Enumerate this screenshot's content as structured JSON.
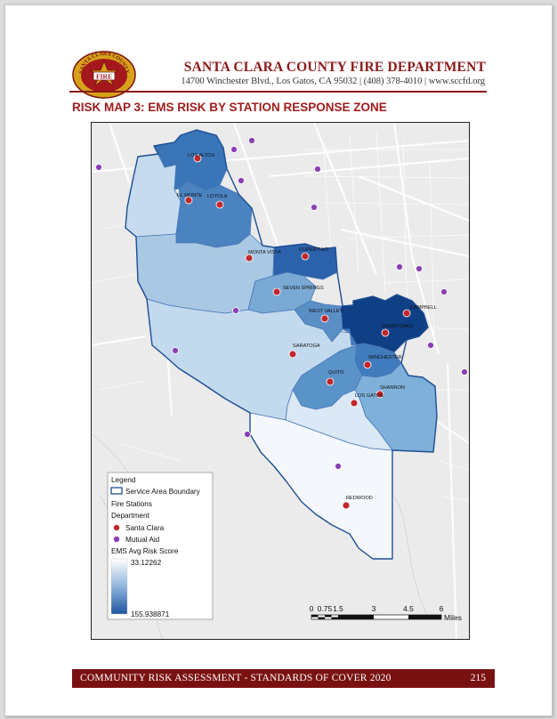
{
  "header": {
    "department": "SANTA CLARA COUNTY FIRE DEPARTMENT",
    "address": "14700 Winchester Blvd., Los Gatos, CA 95032 | (408) 378-4010 | www.sccfd.org",
    "logo_text_top": "SANTA CLARA COUNTY",
    "logo_text_center": "FIRE"
  },
  "map": {
    "title": "RISK MAP 3: EMS RISK BY STATION RESPONSE ZONE",
    "stations": [
      "LOS ALTOS",
      "EL MONTE",
      "LOYOLA",
      "MONTA VISTA",
      "CUPERTINO",
      "SEVEN SPRINGS",
      "WEST VALLEY",
      "CAMPBELL",
      "SUNNYOAKS",
      "SARATOGA",
      "WINCHESTER",
      "QUITO",
      "SHANNON",
      "LOS GATOS",
      "REDWOOD"
    ],
    "legend": {
      "title": "Legend",
      "boundary": "Service Area Boundary",
      "fire_stations": "Fire Stations",
      "department": "Department",
      "santa_clara": "Santa Clara",
      "mutual_aid": "Mutual Aid",
      "risk_title": "EMS Avg Risk Score",
      "risk_max": "33.12262",
      "risk_min": "155.938871"
    },
    "scale": {
      "ticks": [
        "0",
        "0.75",
        "1.5",
        "3",
        "4.5",
        "6"
      ],
      "unit": "Miles"
    },
    "colors": {
      "santa_clara_marker": "#c0282d",
      "mutual_aid_marker": "#8b3fb3",
      "risk_low": "#f4f8fd",
      "risk_high": "#1f55a0"
    }
  },
  "footer": {
    "left": "COMMUNITY RISK ASSESSMENT - STANDARDS OF COVER 2020",
    "page": "215"
  }
}
